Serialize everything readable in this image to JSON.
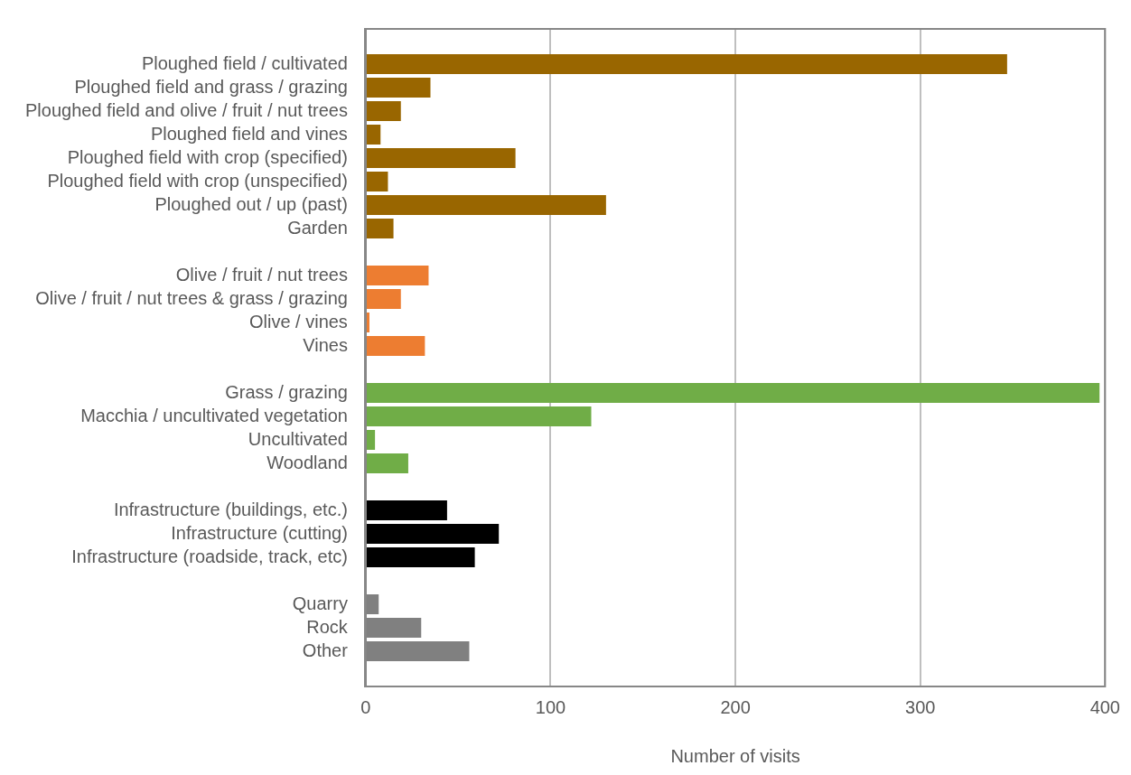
{
  "chart_data": {
    "type": "bar",
    "orientation": "horizontal",
    "xlabel": "Number of visits",
    "categories": [
      null,
      "Ploughed field / cultivated",
      "Ploughed field and grass / grazing",
      "Ploughed field and olive / fruit / nut trees",
      "Ploughed field and vines",
      "Ploughed field with crop (specified)",
      "Ploughed field with crop (unspecified)",
      "Ploughed out / up (past)",
      "Garden",
      null,
      "Olive / fruit / nut trees",
      "Olive / fruit / nut trees & grass / grazing",
      "Olive / vines",
      "Vines",
      null,
      "Grass / grazing",
      "Macchia / uncultivated vegetation",
      "Uncultivated",
      "Woodland",
      null,
      "Infrastructure (buildings, etc.)",
      "Infrastructure (cutting)",
      "Infrastructure (roadside, track, etc)",
      null,
      "Quarry",
      "Rock",
      "Other",
      null
    ],
    "values": [
      null,
      347,
      35,
      19,
      8,
      81,
      12,
      130,
      15,
      null,
      34,
      19,
      2,
      32,
      null,
      397,
      122,
      5,
      23,
      null,
      44,
      72,
      59,
      null,
      7,
      30,
      56,
      null
    ],
    "colors": [
      "#996600",
      "#996600",
      "#996600",
      "#996600",
      "#996600",
      "#996600",
      "#996600",
      "#996600",
      "#996600",
      "#ed7d31",
      "#ed7d31",
      "#ed7d31",
      "#ed7d31",
      "#ed7d31",
      "#70ad47",
      "#70ad47",
      "#70ad47",
      "#70ad47",
      "#70ad47",
      "#000000",
      "#000000",
      "#000000",
      "#000000",
      "#808080",
      "#808080",
      "#808080",
      "#808080",
      "#808080"
    ],
    "xlim": [
      0,
      400
    ],
    "xticks": [
      0,
      100,
      200,
      300,
      400
    ],
    "grid": "x",
    "legend": false
  }
}
